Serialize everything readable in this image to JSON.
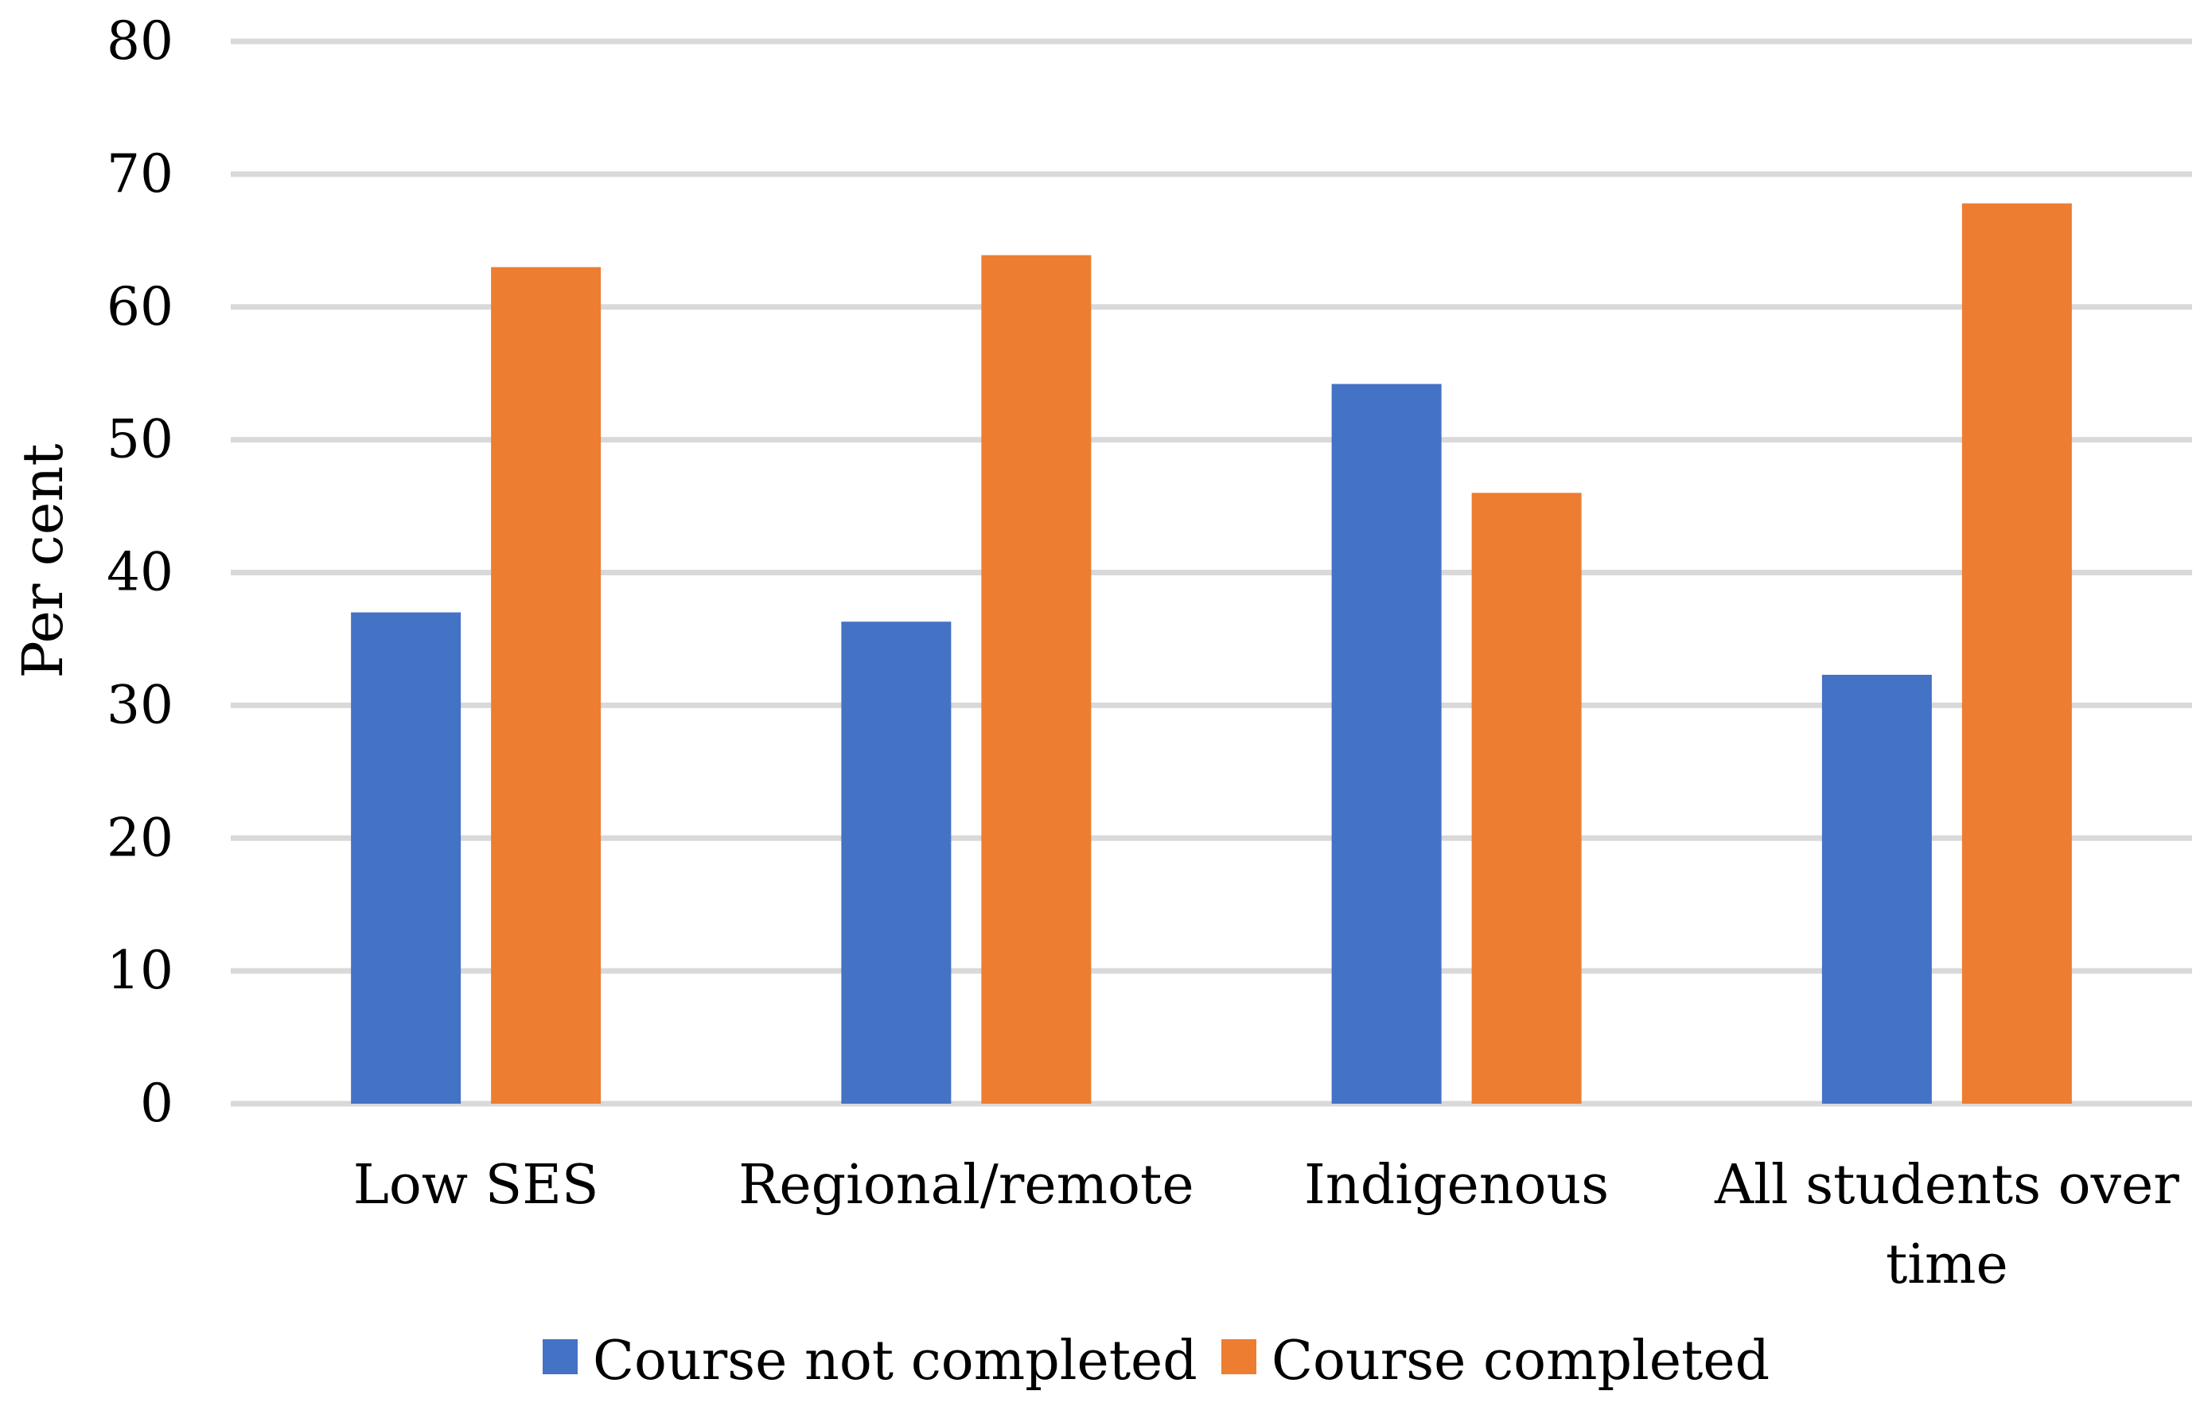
{
  "chart_data": {
    "type": "bar",
    "categories": [
      "Low SES",
      "Regional/remote",
      "Indigenous",
      "All students over time"
    ],
    "category_lines": [
      [
        "Low SES"
      ],
      [
        "Regional/remote"
      ],
      [
        "Indigenous"
      ],
      [
        "All students over",
        "time"
      ]
    ],
    "series": [
      {
        "name": "Course not completed",
        "values": [
          37,
          36.3,
          54.2,
          32.3
        ],
        "color": "#4472c4"
      },
      {
        "name": "Course completed",
        "values": [
          63,
          63.9,
          46,
          67.8
        ],
        "color": "#ed7d31"
      }
    ],
    "ylabel": "Per cent",
    "ylim": [
      0,
      80
    ],
    "yticks": [
      0,
      10,
      20,
      30,
      40,
      50,
      60,
      70,
      80
    ],
    "grid": true,
    "gridline_color": "#d9d9d9",
    "legend_position": "bottom"
  }
}
